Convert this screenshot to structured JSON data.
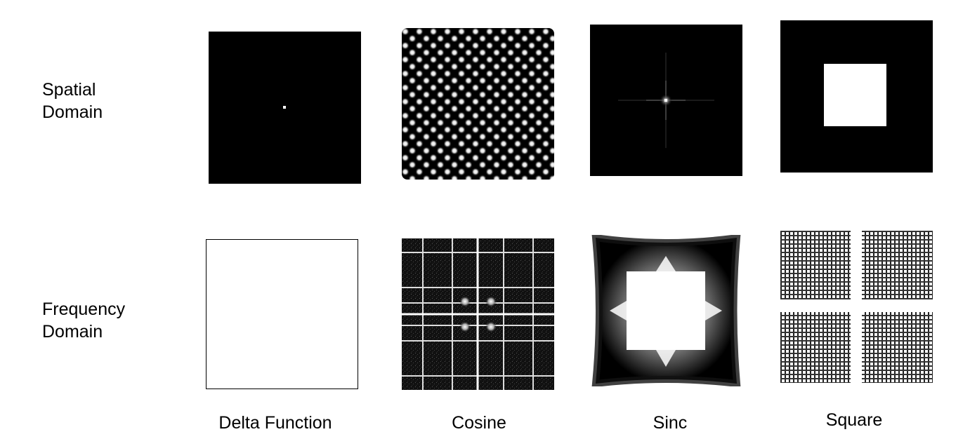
{
  "rows": [
    {
      "label": "Spatial\nDomain"
    },
    {
      "label": "Frequency\nDomain"
    }
  ],
  "columns": [
    {
      "label": "Delta Function",
      "spatial_icon": "delta-point-icon",
      "frequency_icon": "flat-spectrum-icon"
    },
    {
      "label": "Cosine",
      "spatial_icon": "cosine-dot-grid-icon",
      "frequency_icon": "cosine-spectrum-icon"
    },
    {
      "label": "Sinc",
      "spatial_icon": "sinc-pattern-icon",
      "frequency_icon": "rect-spectrum-icon"
    },
    {
      "label": "Square",
      "spatial_icon": "square-pulse-icon",
      "frequency_icon": "sinc-spectrum-icon"
    }
  ],
  "colors": {
    "background": "#ffffff",
    "dark": "#000000",
    "light": "#ffffff"
  }
}
